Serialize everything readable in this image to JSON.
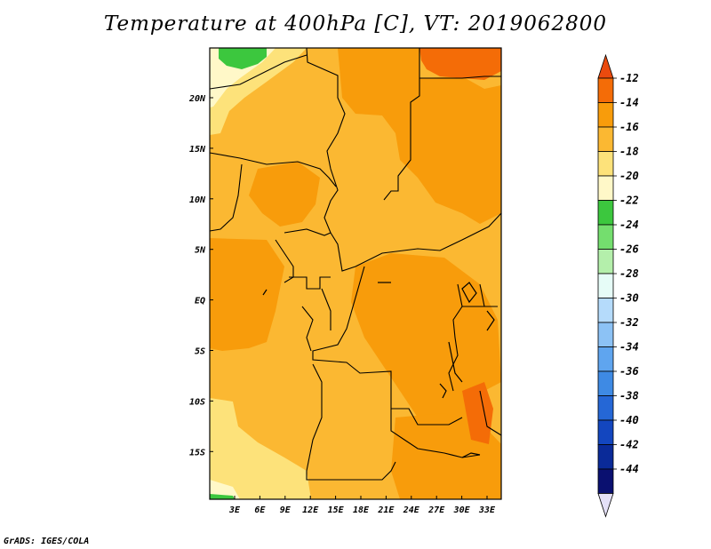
{
  "title": "Temperature at 400hPa [C], VT: 2019062800",
  "credit": "GrADS: IGES/COLA",
  "map": {
    "lat_labels": [
      "20N",
      "15N",
      "10N",
      "5N",
      "EQ",
      "5S",
      "10S",
      "15S"
    ],
    "lon_labels": [
      "3E",
      "6E",
      "9E",
      "12E",
      "15E",
      "18E",
      "21E",
      "24E",
      "27E",
      "30E",
      "33E"
    ]
  },
  "colorbar": {
    "levels": [
      "-12",
      "-14",
      "-16",
      "-18",
      "-20",
      "-22",
      "-24",
      "-26",
      "-28",
      "-30",
      "-32",
      "-34",
      "-36",
      "-38",
      "-40",
      "-42",
      "-44"
    ],
    "colors": [
      "#ea4a0e",
      "#f46c07",
      "#f89c0b",
      "#fbb832",
      "#fde27a",
      "#fff8c8",
      "#3cc73e",
      "#74de6e",
      "#b4efab",
      "#e6fcf7",
      "#b5dbfb",
      "#8cc2f5",
      "#5fa5ef",
      "#3e8ae4",
      "#2567d6",
      "#1346bf",
      "#0a2a98",
      "#0a1070",
      "#e4e0f7"
    ]
  }
}
